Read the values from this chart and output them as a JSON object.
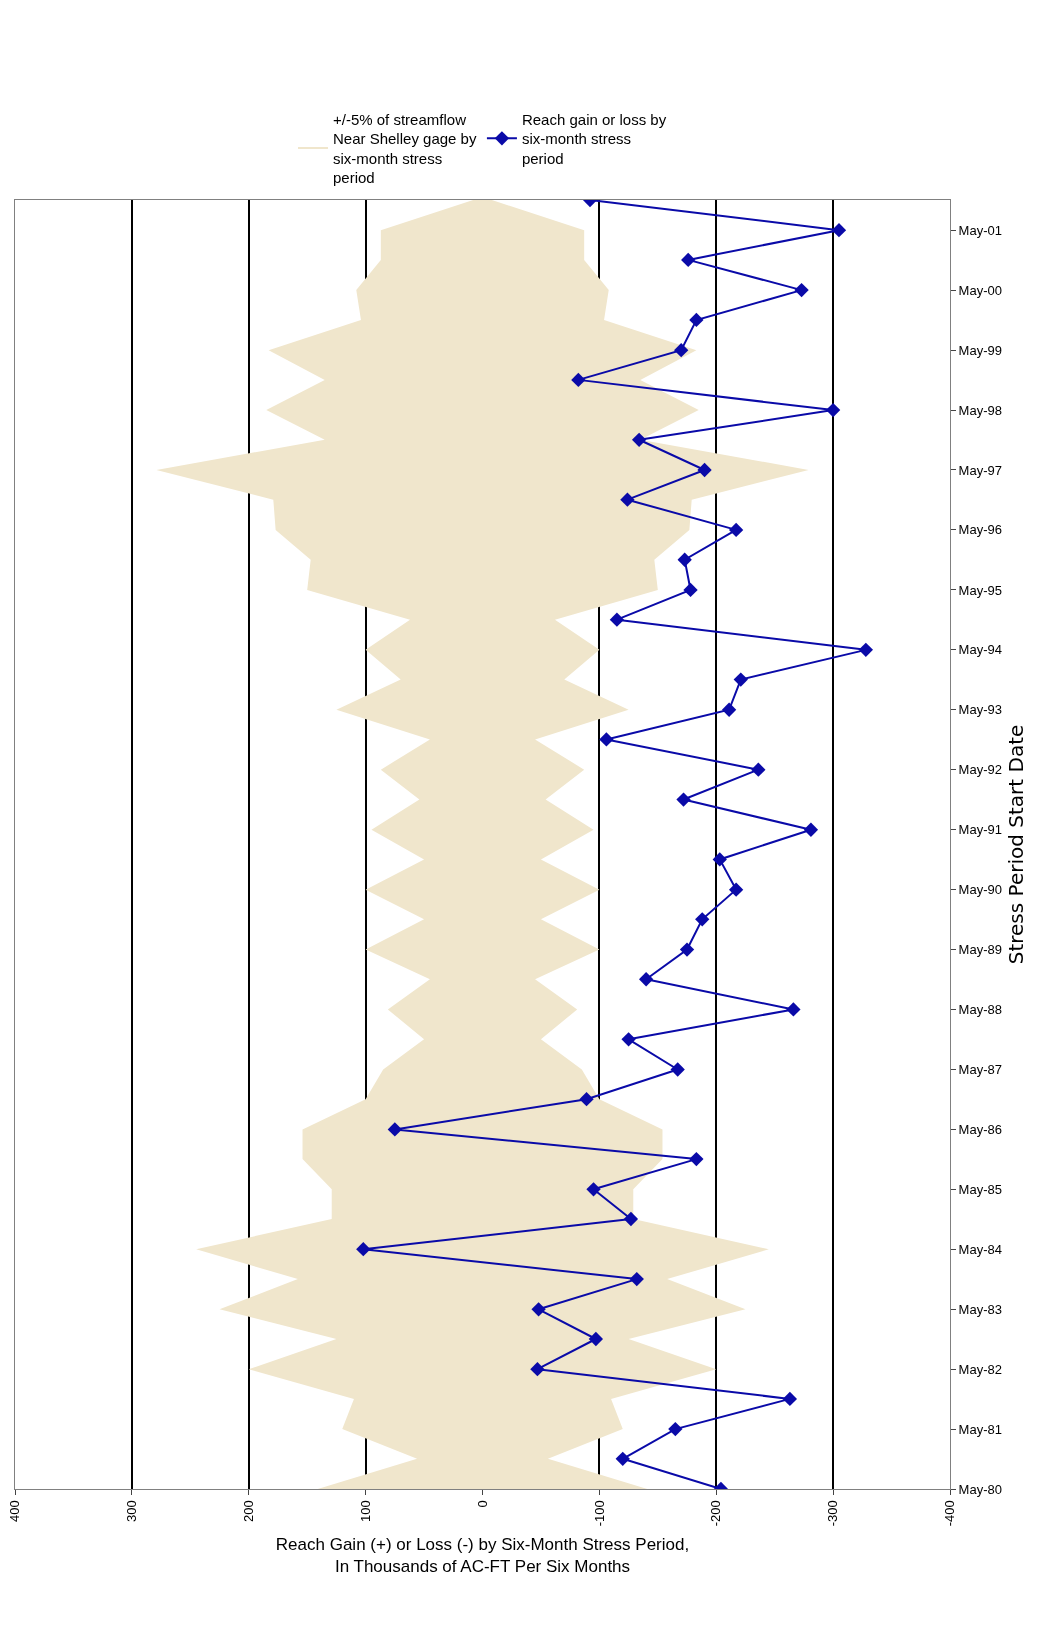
{
  "chart_data": {
    "type": "line",
    "orientation": "horizontal",
    "xlabel": "Reach Gain (+) or Loss (-) by Six-Month Stress Period,\nIn Thousands of AC-FT Per Six Months",
    "ylabel": "Stress Period Start Date",
    "x": [
      "1980-05",
      "1980-11",
      "1981-05",
      "1981-11",
      "1982-05",
      "1982-11",
      "1983-05",
      "1983-11",
      "1984-05",
      "1984-11",
      "1985-05",
      "1985-11",
      "1986-05",
      "1986-11",
      "1987-05",
      "1987-11",
      "1988-05",
      "1988-11",
      "1989-05",
      "1989-11",
      "1990-05",
      "1990-11",
      "1991-05",
      "1991-11",
      "1992-05",
      "1992-11",
      "1993-05",
      "1993-11",
      "1994-05",
      "1994-11",
      "1995-05",
      "1995-11",
      "1996-05",
      "1996-11",
      "1997-05",
      "1997-11",
      "1998-05",
      "1998-11",
      "1999-05",
      "1999-11",
      "2000-05",
      "2000-11",
      "2001-05",
      "2001-11"
    ],
    "series": [
      {
        "name": "+/-5% of streamflow Near Shelley gage by six-month stress period",
        "color": "#f0e6cc",
        "marker": "none",
        "values": [
          0,
          0,
          0,
          0,
          0,
          0,
          0,
          0,
          0,
          0,
          0,
          0,
          0,
          0,
          0,
          0,
          0,
          0,
          0,
          0,
          0,
          0,
          0,
          0,
          0,
          0,
          0,
          0,
          0,
          0,
          0,
          0,
          0,
          0,
          0,
          0,
          0,
          0,
          0,
          0,
          0,
          0,
          0,
          0
        ],
        "upper": [
          141,
          56,
          120,
          110,
          200,
          125,
          225,
          158,
          245,
          129,
          129,
          154,
          154,
          100,
          85,
          50,
          81,
          45,
          100,
          50,
          100,
          50,
          95,
          54,
          87,
          45,
          125,
          70,
          100,
          62,
          150,
          147,
          177,
          179,
          279,
          135,
          185,
          135,
          183,
          104,
          108,
          87,
          87,
          8
        ],
        "lower": [
          -141,
          -56,
          -120,
          -110,
          -200,
          -125,
          -225,
          -158,
          -245,
          -129,
          -129,
          -154,
          -154,
          -100,
          -85,
          -50,
          -81,
          -45,
          -100,
          -50,
          -100,
          -50,
          -95,
          -54,
          -87,
          -45,
          -125,
          -70,
          -100,
          -62,
          -150,
          -147,
          -177,
          -179,
          -279,
          -135,
          -185,
          -135,
          -183,
          -104,
          -108,
          -87,
          -87,
          -8
        ]
      },
      {
        "name": "Reach gain or loss by six-month stress period",
        "color": "#0a0aa8",
        "marker": "diamond",
        "values": [
          -204,
          -120,
          -165,
          -263,
          -47,
          -97,
          -48,
          -132,
          102,
          -127,
          -95,
          -183,
          75,
          -89,
          -167,
          -125,
          -266,
          -140,
          -175,
          -188,
          -217,
          -203,
          -281,
          -172,
          -236,
          -106,
          -211,
          -221,
          -328,
          -115,
          -178,
          -173,
          -217,
          -124,
          -190,
          -134,
          -300,
          -82,
          -170,
          -183,
          -273,
          -176,
          -305,
          -92
        ]
      }
    ],
    "ylim": [
      "1980-05",
      "2001-11"
    ],
    "yticks": [
      {
        "value": "1980-05",
        "label": "May-80"
      },
      {
        "value": "1981-05",
        "label": "May-81"
      },
      {
        "value": "1982-05",
        "label": "May-82"
      },
      {
        "value": "1983-05",
        "label": "May-83"
      },
      {
        "value": "1984-05",
        "label": "May-84"
      },
      {
        "value": "1985-05",
        "label": "May-85"
      },
      {
        "value": "1986-05",
        "label": "May-86"
      },
      {
        "value": "1987-05",
        "label": "May-87"
      },
      {
        "value": "1988-05",
        "label": "May-88"
      },
      {
        "value": "1989-05",
        "label": "May-89"
      },
      {
        "value": "1990-05",
        "label": "May-90"
      },
      {
        "value": "1991-05",
        "label": "May-91"
      },
      {
        "value": "1992-05",
        "label": "May-92"
      },
      {
        "value": "1993-05",
        "label": "May-93"
      },
      {
        "value": "1994-05",
        "label": "May-94"
      },
      {
        "value": "1995-05",
        "label": "May-95"
      },
      {
        "value": "1996-05",
        "label": "May-96"
      },
      {
        "value": "1997-05",
        "label": "May-97"
      },
      {
        "value": "1998-05",
        "label": "May-98"
      },
      {
        "value": "1999-05",
        "label": "May-99"
      },
      {
        "value": "2000-05",
        "label": "May-00"
      },
      {
        "value": "2001-05",
        "label": "May-01"
      }
    ],
    "xlim": [
      400,
      -400
    ],
    "xticks": [
      400,
      300,
      200,
      100,
      0,
      -100,
      -200,
      -300,
      -400
    ],
    "grid": "x",
    "legend": "top",
    "line_style": "solid"
  }
}
